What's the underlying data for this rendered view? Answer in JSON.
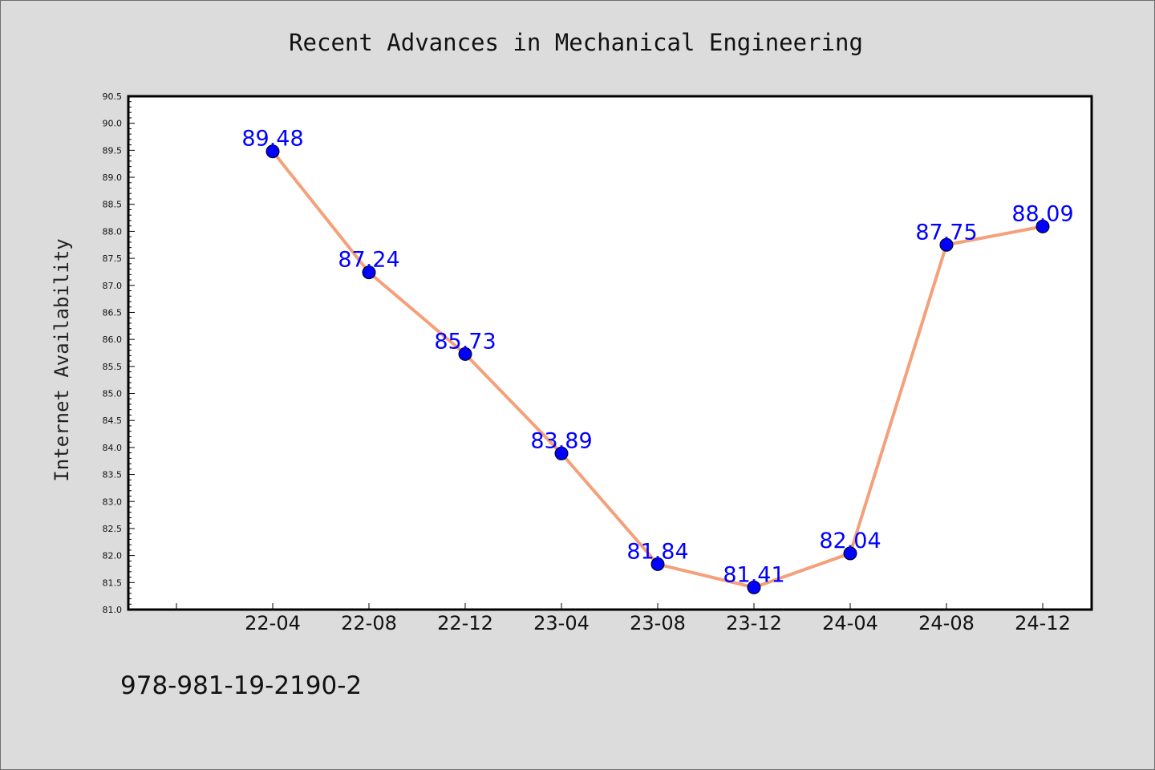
{
  "chart_data": {
    "type": "line",
    "title": "Recent Advances in Mechanical Engineering",
    "xlabel": "",
    "ylabel": "Internet Availability",
    "categories": [
      "22-04",
      "22-08",
      "22-12",
      "23-04",
      "23-08",
      "23-12",
      "24-04",
      "24-08",
      "24-12"
    ],
    "series": [
      {
        "values": [
          89.48,
          87.24,
          85.73,
          83.89,
          81.84,
          81.41,
          82.04,
          87.75,
          88.09
        ]
      }
    ],
    "data_labels": [
      "89.48",
      "87.24",
      "85.73",
      "83.89",
      "81.84",
      "81.41",
      "82.04",
      "87.75",
      "88.09"
    ],
    "ylim": [
      81.0,
      90.5
    ],
    "yticks": [
      "81.0",
      "81.5",
      "82.0",
      "82.5",
      "83.0",
      "83.5",
      "84.0",
      "84.5",
      "85.0",
      "85.5",
      "86.0",
      "86.5",
      "87.0",
      "87.5",
      "88.0",
      "88.5",
      "89.0",
      "89.5",
      "90.0",
      "90.5"
    ],
    "grid": false,
    "legend": "none",
    "colors": {
      "line": "#f4a07a",
      "marker": "#0000ff",
      "label": "#0000ff",
      "background": "#dcdcdc",
      "plot_background": "#ffffff"
    }
  },
  "footer": {
    "isbn": "978-981-19-2190-2"
  }
}
